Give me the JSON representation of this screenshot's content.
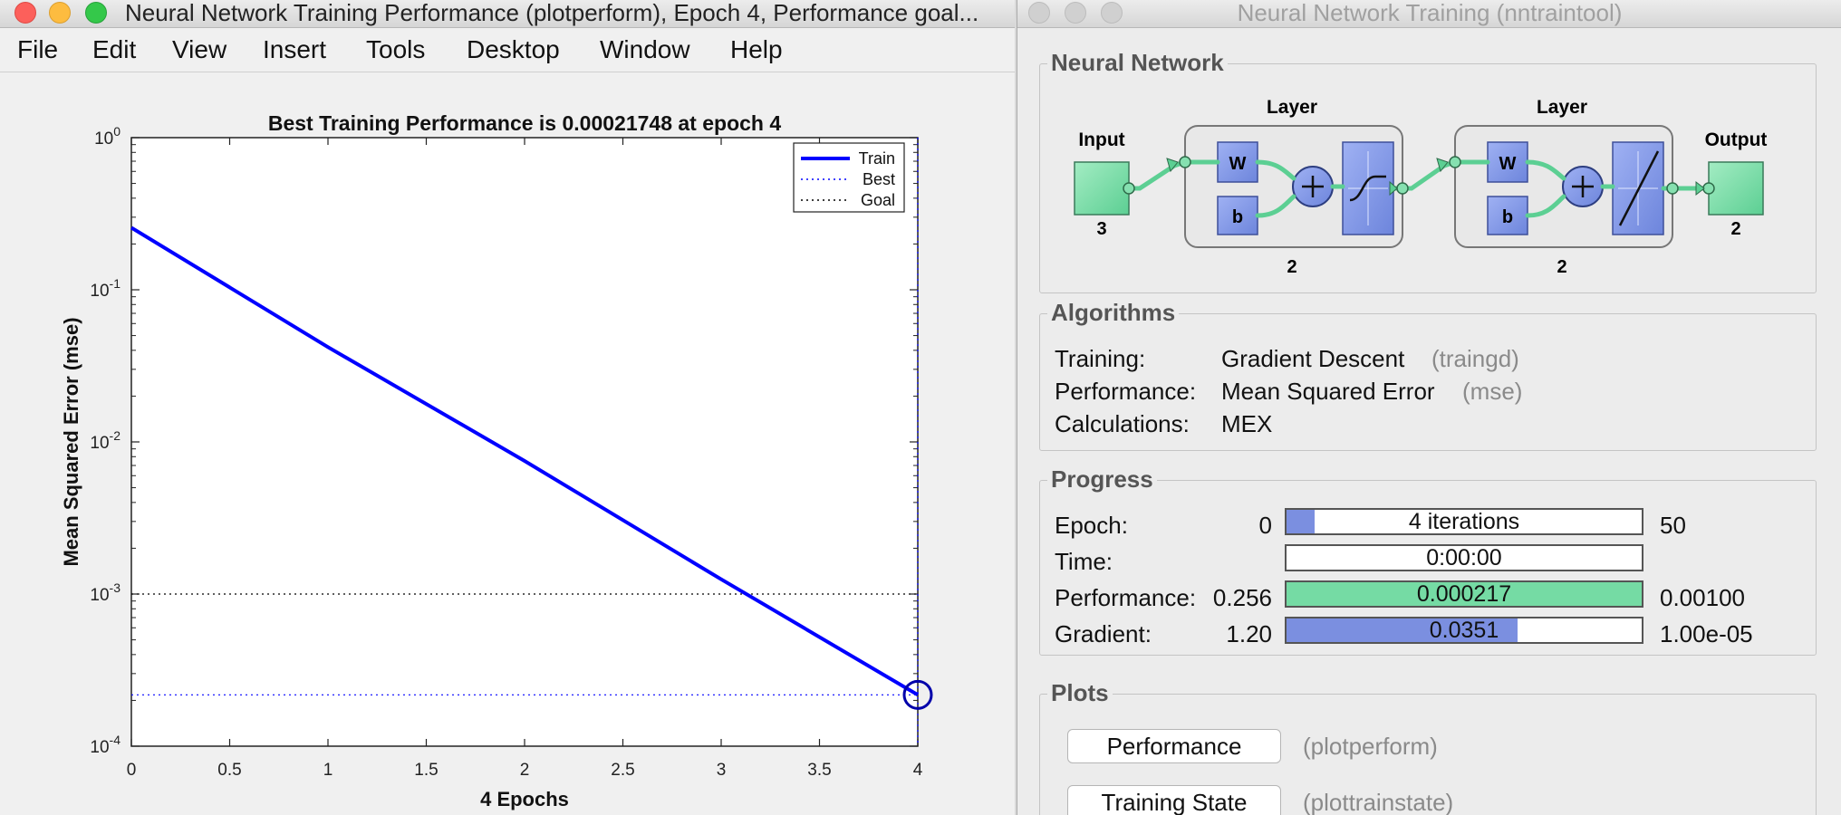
{
  "left_window": {
    "title": "Neural Network Training Performance (plotperform), Epoch 4, Performance goal...",
    "menu": [
      "File",
      "Edit",
      "View",
      "Insert",
      "Tools",
      "Desktop",
      "Window",
      "Help"
    ]
  },
  "right_window": {
    "title": "Neural Network Training (nntraintool)",
    "network": {
      "section_title": "Neural Network",
      "input_label": "Input",
      "input_size": "3",
      "layer1_label": "Layer",
      "layer1_size": "2",
      "layer2_label": "Layer",
      "layer2_size": "2",
      "output_label": "Output",
      "output_size": "2",
      "weight_label": "W",
      "bias_label": "b"
    },
    "algorithms": {
      "section_title": "Algorithms",
      "rows": [
        {
          "label": "Training:",
          "value": "Gradient Descent",
          "paren": "(traingd)"
        },
        {
          "label": "Performance:",
          "value": "Mean Squared Error",
          "paren": "(mse)"
        },
        {
          "label": "Calculations:",
          "value": "MEX",
          "paren": ""
        }
      ]
    },
    "progress": {
      "section_title": "Progress",
      "rows": [
        {
          "label": "Epoch:",
          "min": "0",
          "text": "4 iterations",
          "max": "50",
          "fill": 0.08,
          "color": "#7b8fe0"
        },
        {
          "label": "Time:",
          "min": "",
          "text": "0:00:00",
          "max": "",
          "fill": 0,
          "color": "#7b8fe0"
        },
        {
          "label": "Performance:",
          "min": "0.256",
          "text": "0.000217",
          "max": "0.00100",
          "fill": 1.0,
          "color": "#75dba4"
        },
        {
          "label": "Gradient:",
          "min": "1.20",
          "text": "0.0351",
          "max": "1.00e-05",
          "fill": 0.65,
          "color": "#7b8fe0"
        }
      ]
    },
    "plots": {
      "section_title": "Plots",
      "buttons": [
        {
          "label": "Performance",
          "paren": "(plotperform)"
        },
        {
          "label": "Training State",
          "paren": "(plottrainstate)"
        }
      ]
    }
  },
  "chart_data": {
    "type": "line",
    "title": "Best Training Performance is 0.00021748 at epoch 4",
    "xlabel": "4 Epochs",
    "ylabel": "Mean Squared Error  (mse)",
    "xlim": [
      0,
      4
    ],
    "ylim": [
      0.0001,
      1
    ],
    "yscale": "log",
    "xticks": [
      "0",
      "0.5",
      "1",
      "1.5",
      "2",
      "2.5",
      "3",
      "3.5",
      "4"
    ],
    "yticks": [
      {
        "base": "10",
        "exp": "0"
      },
      {
        "base": "10",
        "exp": "-1"
      },
      {
        "base": "10",
        "exp": "-2"
      },
      {
        "base": "10",
        "exp": "-3"
      },
      {
        "base": "10",
        "exp": "-4"
      }
    ],
    "series": [
      {
        "name": "Train",
        "style": "solid",
        "color": "#0000ff",
        "x": [
          0,
          1,
          2,
          3,
          4
        ],
        "y": [
          0.256,
          0.042,
          0.0075,
          0.00125,
          0.00021748
        ]
      },
      {
        "name": "Best",
        "style": "dotted",
        "color": "#0000ff",
        "best_x": 4,
        "best_y": 0.00021748
      },
      {
        "name": "Goal",
        "style": "dotted",
        "color": "#000000",
        "goal_y": 0.001
      }
    ],
    "legend_position": "top-right"
  }
}
